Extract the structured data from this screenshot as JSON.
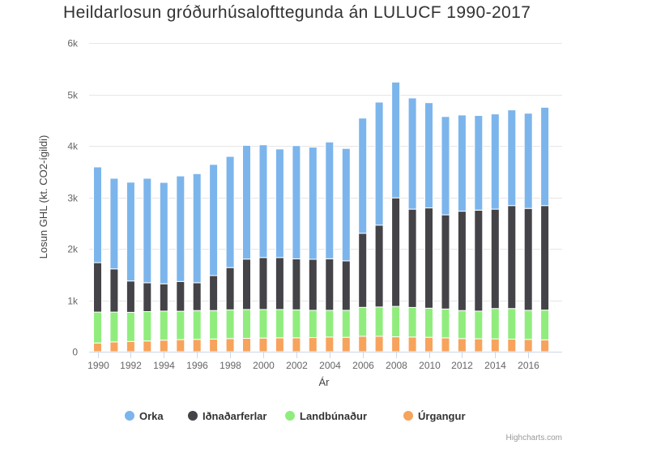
{
  "chart_data": {
    "type": "bar",
    "stacked": true,
    "title": "Heildarlosun gróðurhúsalofttegunda án LULUCF 1990-2017",
    "xlabel": "Ár",
    "ylabel": "Losun GHL (kt. CO2-ígildi)",
    "ylim": [
      0,
      6000
    ],
    "yticks": [
      {
        "value": 0,
        "label": "0"
      },
      {
        "value": 1000,
        "label": "1k"
      },
      {
        "value": 2000,
        "label": "2k"
      },
      {
        "value": 3000,
        "label": "3k"
      },
      {
        "value": 4000,
        "label": "4k"
      },
      {
        "value": 5000,
        "label": "5k"
      },
      {
        "value": 6000,
        "label": "6k"
      }
    ],
    "categories": [
      "1990",
      "1991",
      "1992",
      "1993",
      "1994",
      "1995",
      "1996",
      "1997",
      "1998",
      "1999",
      "2000",
      "2001",
      "2002",
      "2003",
      "2004",
      "2005",
      "2006",
      "2007",
      "2008",
      "2009",
      "2010",
      "2011",
      "2012",
      "2013",
      "2014",
      "2015",
      "2016",
      "2017"
    ],
    "xtick_labels": [
      "1990",
      "1992",
      "1994",
      "1996",
      "1998",
      "2000",
      "2002",
      "2004",
      "2006",
      "2008",
      "2010",
      "2012",
      "2014",
      "2016"
    ],
    "series": [
      {
        "name": "Úrgangur",
        "color": "#f7a35c",
        "values": [
          170,
          190,
          200,
          210,
          225,
          235,
          240,
          245,
          255,
          260,
          265,
          270,
          270,
          275,
          285,
          280,
          300,
          300,
          290,
          285,
          280,
          270,
          255,
          250,
          250,
          245,
          240,
          230
        ]
      },
      {
        "name": "Landbúnaður",
        "color": "#90ed7d",
        "values": [
          600,
          580,
          565,
          570,
          565,
          550,
          560,
          555,
          560,
          560,
          555,
          550,
          545,
          530,
          520,
          525,
          560,
          570,
          590,
          575,
          565,
          560,
          545,
          540,
          590,
          595,
          565,
          580
        ]
      },
      {
        "name": "Iðnaðarferlar",
        "color": "#434348",
        "values": [
          960,
          840,
          610,
          560,
          530,
          580,
          540,
          680,
          820,
          980,
          1010,
          1010,
          990,
          990,
          1000,
          960,
          1440,
          1590,
          2110,
          1910,
          1950,
          1830,
          1930,
          1960,
          1930,
          2000,
          1980,
          2030
        ]
      },
      {
        "name": "Orka",
        "color": "#7cb5ec",
        "values": [
          1860,
          1760,
          1920,
          2030,
          1970,
          2050,
          2120,
          2160,
          2160,
          2210,
          2190,
          2110,
          2200,
          2180,
          2270,
          2185,
          2240,
          2390,
          2250,
          2160,
          2045,
          1910,
          1870,
          1840,
          1850,
          1860,
          1850,
          1910
        ]
      }
    ],
    "legend": [
      {
        "name": "Orka",
        "color": "#7cb5ec"
      },
      {
        "name": "Iðnaðarferlar",
        "color": "#434348"
      },
      {
        "name": "Landbúnaður",
        "color": "#90ed7d"
      },
      {
        "name": "Úrgangur",
        "color": "#f7a35c"
      }
    ],
    "legend_position": "bottom",
    "grid": true
  },
  "credits": "Highcharts.com"
}
